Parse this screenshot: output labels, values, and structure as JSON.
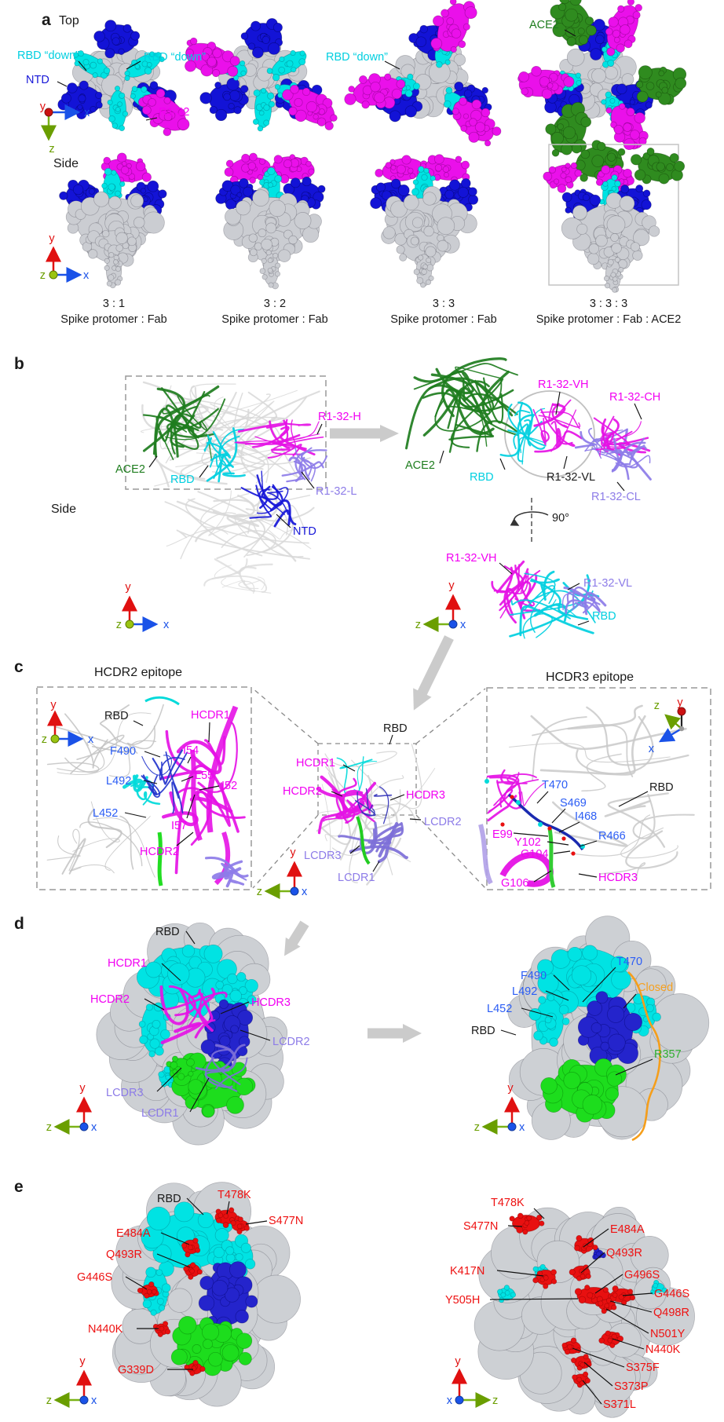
{
  "colors": {
    "magenta": "#f200f2",
    "cyan": "#00e3e3",
    "blue_residue": "#2b5df5",
    "ntd_blue": "#1616d8",
    "navy_patch": "#2424cc",
    "purple": "#8d7ce8",
    "ace2_green": "#2f8b1f",
    "bright_green": "#1ddd1d",
    "mutation_red": "#e81010",
    "closed_orange": "#f5a020",
    "surface_gray": "#cbcdd2",
    "arrow_gray": "#cbcbcb"
  },
  "axes": {
    "x": "x",
    "y": "y",
    "z": "z"
  },
  "panel_a": {
    "letter": "a",
    "view_top": "Top",
    "view_side": "Side",
    "labels": {
      "rbd_down": "RBD “down”",
      "ntd": "NTD",
      "r1_32": "R1-32",
      "ace2": "ACE2"
    },
    "ratios": [
      {
        "ratio": "3 : 1",
        "desc": "Spike protomer : Fab"
      },
      {
        "ratio": "3 : 2",
        "desc": "Spike protomer : Fab"
      },
      {
        "ratio": "3 : 3",
        "desc": "Spike protomer : Fab"
      },
      {
        "ratio": "3 : 3 : 3",
        "desc": "Spike protomer : Fab : ACE2"
      }
    ]
  },
  "panel_b": {
    "letter": "b",
    "side": "Side",
    "rotation": "90°",
    "labels": {
      "ace2": "ACE2",
      "rbd": "RBD",
      "ntd": "NTD",
      "r1_32_h": "R1-32-H",
      "r1_32_l": "R1-32-L",
      "r1_32_vh": "R1-32-VH",
      "r1_32_ch": "R1-32-CH",
      "r1_32_vl": "R1-32-VL",
      "r1_32_cl": "R1-32-CL"
    }
  },
  "panel_c": {
    "letter": "c",
    "hcdr2_title": "HCDR2 epitope",
    "hcdr3_title": "HCDR3 epitope",
    "labels": {
      "rbd": "RBD",
      "hcdr1": "HCDR1",
      "hcdr2": "HCDR2",
      "hcdr3": "HCDR3",
      "lcdr1": "LCDR1",
      "lcdr2": "LCDR2",
      "lcdr3": "LCDR3"
    },
    "residues_left": {
      "f490": "F490",
      "i54": "I54",
      "l492": "L492",
      "l55": "L55",
      "i52": "I52",
      "l452": "L452",
      "i57": "I57"
    },
    "residues_right": {
      "t470": "T470",
      "s469": "S469",
      "i468": "I468",
      "r466": "R466",
      "e99": "E99",
      "y102": "Y102",
      "g104": "G104",
      "g106": "G106"
    }
  },
  "panel_d": {
    "letter": "d",
    "labels": {
      "rbd": "RBD",
      "hcdr1": "HCDR1",
      "hcdr2": "HCDR2",
      "hcdr3": "HCDR3",
      "lcdr1": "LCDR1",
      "lcdr2": "LCDR2",
      "lcdr3": "LCDR3",
      "t470": "T470",
      "f490": "F490",
      "l492": "L492",
      "l452": "L452",
      "closed": "Closed",
      "r357": "R357"
    }
  },
  "panel_e": {
    "letter": "e",
    "labels": {
      "rbd": "RBD"
    },
    "mutations": {
      "t478k": "T478K",
      "s477n": "S477N",
      "e484a": "E484A",
      "q493r": "Q493R",
      "g446s": "G446S",
      "n440k": "N440K",
      "g339d": "G339D",
      "k417n": "K417N",
      "g496s": "G496S",
      "y505h": "Y505H",
      "q498r": "Q498R",
      "n501y": "N501Y",
      "s375f": "S375F",
      "s373p": "S373P",
      "s371l": "S371L"
    }
  }
}
